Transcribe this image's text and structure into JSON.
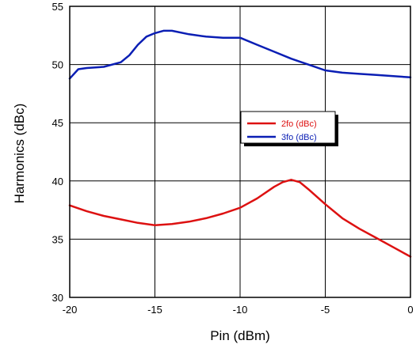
{
  "chart_data": {
    "type": "line",
    "xlabel": "Pin (dBm)",
    "ylabel": "Harmonics (dBc)",
    "xlim": [
      -20,
      0
    ],
    "ylim": [
      30,
      55
    ],
    "xticks": [
      -20,
      -15,
      -10,
      -5,
      0
    ],
    "yticks": [
      30,
      35,
      40,
      45,
      50,
      55
    ],
    "grid": true,
    "legend_position": "center-right",
    "series": [
      {
        "name": "2fo (dBc)",
        "color": "#dd1111",
        "x": [
          -20,
          -19,
          -18,
          -17,
          -16,
          -15,
          -14,
          -13,
          -12,
          -11,
          -10,
          -9,
          -8,
          -7.5,
          -7,
          -6.5,
          -6,
          -5,
          -4,
          -3,
          -2,
          -1,
          0
        ],
        "y": [
          37.9,
          37.4,
          37.0,
          36.7,
          36.4,
          36.2,
          36.3,
          36.5,
          36.8,
          37.2,
          37.7,
          38.5,
          39.5,
          39.9,
          40.1,
          39.9,
          39.3,
          38.0,
          36.8,
          35.9,
          35.1,
          34.3,
          33.5
        ]
      },
      {
        "name": "3fo (dBc)",
        "color": "#0a1eb4",
        "x": [
          -20,
          -19.5,
          -19,
          -18,
          -17,
          -16.5,
          -16,
          -15.5,
          -15,
          -14.5,
          -14,
          -13,
          -12,
          -11,
          -10,
          -9,
          -8,
          -7,
          -6,
          -5,
          -4,
          -3,
          -2,
          -1,
          0
        ],
        "y": [
          48.8,
          49.6,
          49.7,
          49.8,
          50.2,
          50.8,
          51.7,
          52.4,
          52.7,
          52.9,
          52.9,
          52.6,
          52.4,
          52.3,
          52.3,
          51.7,
          51.1,
          50.5,
          50.0,
          49.5,
          49.3,
          49.2,
          49.1,
          49.0,
          48.9
        ]
      }
    ]
  }
}
